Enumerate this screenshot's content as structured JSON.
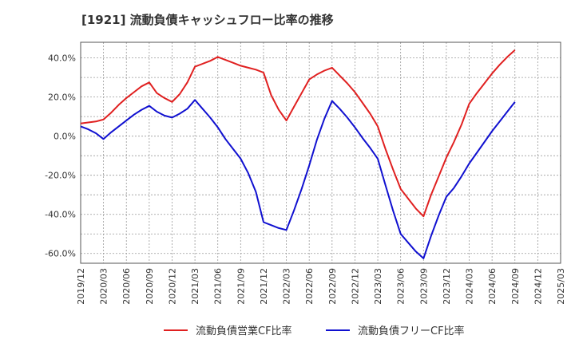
{
  "chart_data": {
    "type": "line",
    "title": "[1921]  流動負債キャッシュフロー比率の推移",
    "xlabel": "",
    "ylabel": "",
    "ylim": [
      -65,
      48
    ],
    "y_ticks": [
      {
        "value": 40,
        "label": "40.0%"
      },
      {
        "value": 20,
        "label": "20.0%"
      },
      {
        "value": 0,
        "label": "0.0%"
      },
      {
        "value": -20,
        "label": "-20.0%"
      },
      {
        "value": -40,
        "label": "-40.0%"
      },
      {
        "value": -60,
        "label": "-60.0%"
      }
    ],
    "x_ticks": [
      "2019/12",
      "2020/03",
      "2020/06",
      "2020/09",
      "2020/12",
      "2021/03",
      "2021/06",
      "2021/09",
      "2021/12",
      "2022/03",
      "2022/06",
      "2022/09",
      "2022/12",
      "2023/03",
      "2023/06",
      "2023/09",
      "2023/12",
      "2024/03",
      "2024/06",
      "2024/09",
      "2024/12",
      "2025/03"
    ],
    "grid": true,
    "legend_position": "bottom",
    "series": [
      {
        "name": "流動負債営業CF比率",
        "color": "#e02020",
        "points": [
          [
            "2019/12",
            6.5
          ],
          [
            "2020/01",
            7.0
          ],
          [
            "2020/02",
            7.5
          ],
          [
            "2020/03",
            8.5
          ],
          [
            "2020/04",
            12.0
          ],
          [
            "2020/05",
            16.0
          ],
          [
            "2020/06",
            19.5
          ],
          [
            "2020/07",
            22.5
          ],
          [
            "2020/08",
            25.5
          ],
          [
            "2020/09",
            27.5
          ],
          [
            "2020/10",
            22.0
          ],
          [
            "2020/11",
            19.5
          ],
          [
            "2020/12",
            17.5
          ],
          [
            "2021/01",
            21.5
          ],
          [
            "2021/02",
            27.5
          ],
          [
            "2021/03",
            35.5
          ],
          [
            "2021/04",
            37.0
          ],
          [
            "2021/05",
            38.5
          ],
          [
            "2021/06",
            40.5
          ],
          [
            "2021/07",
            39.0
          ],
          [
            "2021/08",
            37.5
          ],
          [
            "2021/09",
            36.0
          ],
          [
            "2021/10",
            35.0
          ],
          [
            "2021/11",
            34.0
          ],
          [
            "2021/12",
            32.5
          ],
          [
            "2022/01",
            21.0
          ],
          [
            "2022/02",
            13.5
          ],
          [
            "2022/03",
            8.0
          ],
          [
            "2022/04",
            15.0
          ],
          [
            "2022/05",
            22.0
          ],
          [
            "2022/06",
            29.0
          ],
          [
            "2022/07",
            31.5
          ],
          [
            "2022/08",
            33.5
          ],
          [
            "2022/09",
            35.0
          ],
          [
            "2022/10",
            31.0
          ],
          [
            "2022/11",
            27.0
          ],
          [
            "2022/12",
            22.5
          ],
          [
            "2023/01",
            17.0
          ],
          [
            "2023/02",
            11.5
          ],
          [
            "2023/03",
            5.0
          ],
          [
            "2023/04",
            -6.5
          ],
          [
            "2023/05",
            -17.0
          ],
          [
            "2023/06",
            -27.0
          ],
          [
            "2023/07",
            -32.0
          ],
          [
            "2023/08",
            -37.0
          ],
          [
            "2023/09",
            -41.0
          ],
          [
            "2023/10",
            -30.0
          ],
          [
            "2023/11",
            -20.5
          ],
          [
            "2023/12",
            -11.0
          ],
          [
            "2024/01",
            -3.0
          ],
          [
            "2024/02",
            6.0
          ],
          [
            "2024/03",
            16.5
          ],
          [
            "2024/04",
            22.0
          ],
          [
            "2024/05",
            27.0
          ],
          [
            "2024/06",
            32.0
          ],
          [
            "2024/07",
            36.5
          ],
          [
            "2024/08",
            40.5
          ],
          [
            "2024/09",
            44.0
          ]
        ]
      },
      {
        "name": "流動負債フリーCF比率",
        "color": "#1010d0",
        "points": [
          [
            "2019/12",
            5.0
          ],
          [
            "2020/01",
            3.5
          ],
          [
            "2020/02",
            1.5
          ],
          [
            "2020/03",
            -1.5
          ],
          [
            "2020/04",
            2.0
          ],
          [
            "2020/05",
            5.0
          ],
          [
            "2020/06",
            8.0
          ],
          [
            "2020/07",
            11.0
          ],
          [
            "2020/08",
            13.5
          ],
          [
            "2020/09",
            15.5
          ],
          [
            "2020/10",
            12.5
          ],
          [
            "2020/11",
            10.5
          ],
          [
            "2020/12",
            9.5
          ],
          [
            "2021/01",
            11.5
          ],
          [
            "2021/02",
            14.0
          ],
          [
            "2021/03",
            18.5
          ],
          [
            "2021/04",
            14.0
          ],
          [
            "2021/05",
            9.5
          ],
          [
            "2021/06",
            4.5
          ],
          [
            "2021/07",
            -1.5
          ],
          [
            "2021/08",
            -6.5
          ],
          [
            "2021/09",
            -11.5
          ],
          [
            "2021/10",
            -19.0
          ],
          [
            "2021/11",
            -28.5
          ],
          [
            "2021/12",
            -44.0
          ],
          [
            "2022/01",
            -45.5
          ],
          [
            "2022/02",
            -47.0
          ],
          [
            "2022/03",
            -48.0
          ],
          [
            "2022/04",
            -38.0
          ],
          [
            "2022/05",
            -27.0
          ],
          [
            "2022/06",
            -15.0
          ],
          [
            "2022/07",
            -2.0
          ],
          [
            "2022/08",
            9.0
          ],
          [
            "2022/09",
            18.0
          ],
          [
            "2022/10",
            14.0
          ],
          [
            "2022/11",
            9.5
          ],
          [
            "2022/12",
            4.5
          ],
          [
            "2023/01",
            -1.0
          ],
          [
            "2023/02",
            -6.0
          ],
          [
            "2023/03",
            -11.5
          ],
          [
            "2023/04",
            -25.0
          ],
          [
            "2023/05",
            -38.0
          ],
          [
            "2023/06",
            -50.0
          ],
          [
            "2023/07",
            -54.5
          ],
          [
            "2023/08",
            -59.0
          ],
          [
            "2023/09",
            -62.5
          ],
          [
            "2023/10",
            -51.0
          ],
          [
            "2023/11",
            -40.5
          ],
          [
            "2023/12",
            -31.0
          ],
          [
            "2024/01",
            -26.5
          ],
          [
            "2024/02",
            -20.5
          ],
          [
            "2024/03",
            -14.0
          ],
          [
            "2024/04",
            -8.5
          ],
          [
            "2024/05",
            -3.0
          ],
          [
            "2024/06",
            2.5
          ],
          [
            "2024/07",
            7.5
          ],
          [
            "2024/08",
            12.5
          ],
          [
            "2024/09",
            17.5
          ]
        ]
      }
    ]
  }
}
